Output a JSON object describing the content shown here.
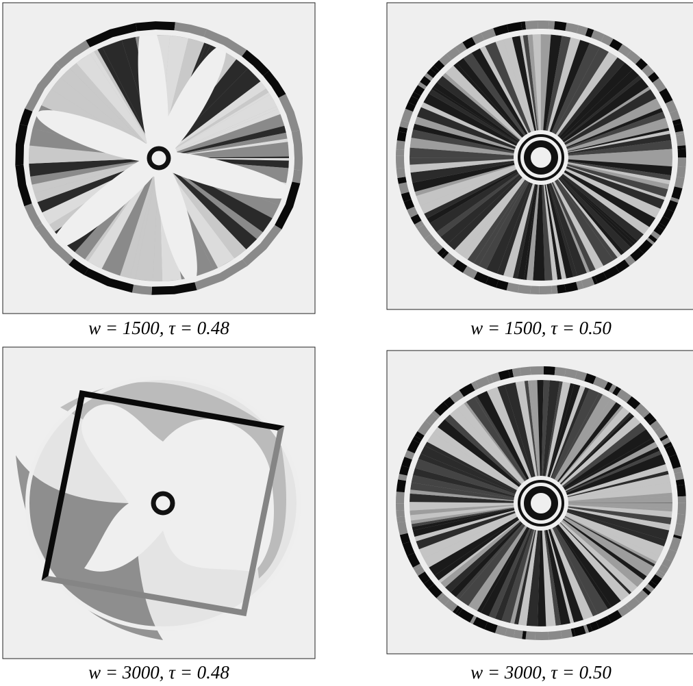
{
  "panels": [
    {
      "caption": "w = 1500,  τ = 0.48"
    },
    {
      "caption": "w = 1500,  τ = 0.50"
    },
    {
      "caption": "w = 3000,  τ = 0.48"
    },
    {
      "caption": "w = 3000,  τ = 0.50"
    }
  ]
}
